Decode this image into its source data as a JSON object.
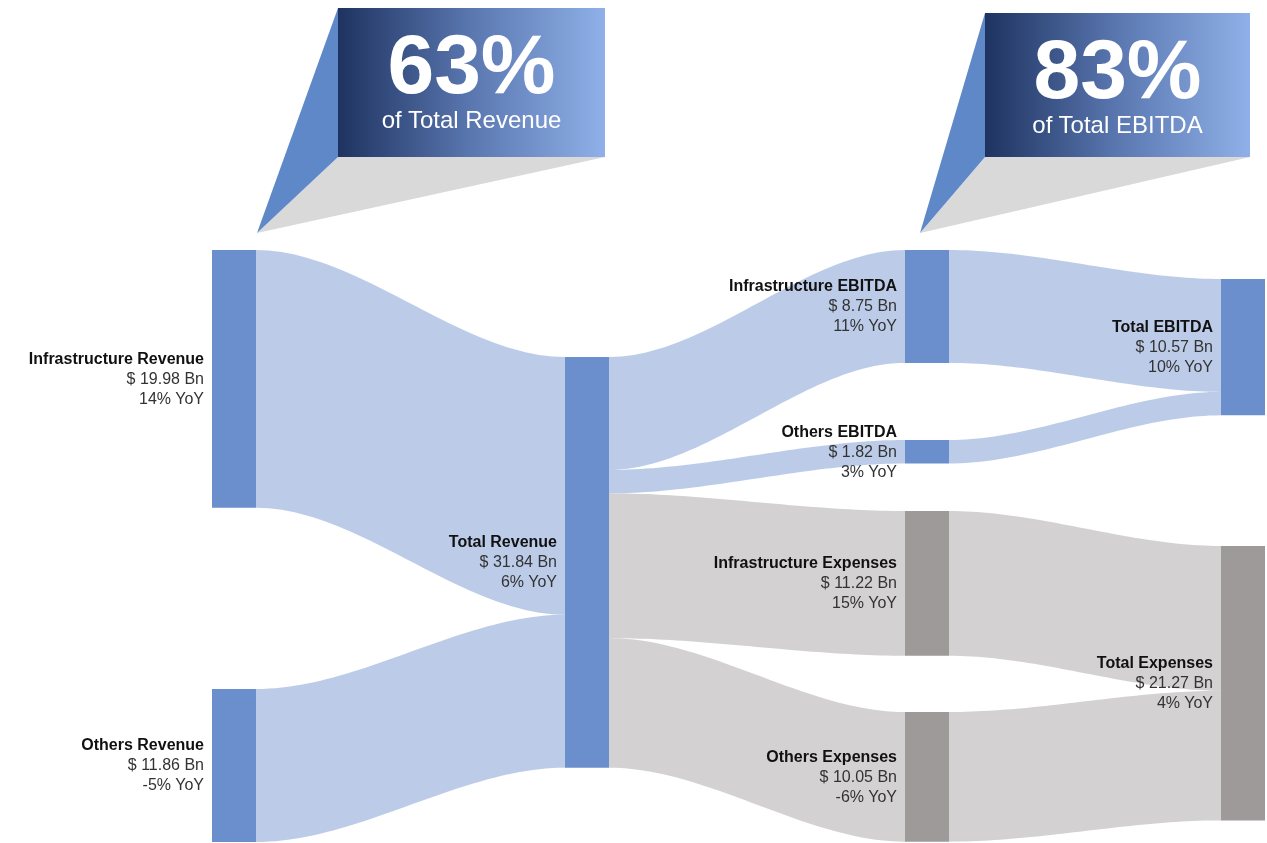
{
  "chart_data": {
    "type": "other",
    "categories": [
      "Infrastructure Revenue",
      "Others Revenue",
      "Total Revenue",
      "Infrastructure EBITDA",
      "Others EBITDA",
      "Infrastructure Expenses",
      "Others Expenses",
      "Total EBITDA",
      "Total Expenses"
    ],
    "values": [
      19.98,
      11.86,
      31.84,
      8.75,
      1.82,
      11.22,
      10.05,
      10.57,
      21.27
    ],
    "value_labels": [
      "$ 19.98 Bn",
      "$ 11.86 Bn",
      "$ 31.84 Bn",
      "$ 8.75 Bn",
      "$ 1.82 Bn",
      "$ 11.22 Bn",
      "$ 10.05 Bn",
      "$ 10.57 Bn",
      "$ 21.27 Bn"
    ],
    "colors": [
      "#6a8fcc",
      "#6a8fcc",
      "#6a8fcc",
      "#6a8fcc",
      "#6a8fcc",
      "#9e9a9a",
      "#9e9a9a",
      "#6a8fcc",
      "#9e9a9a"
    ],
    "annotations": [
      "14% YoY",
      "-5% YoY",
      "6% YoY",
      "11% YoY",
      "3% YoY",
      "15% YoY",
      "-6% YoY",
      "10% YoY",
      "4% YoY",
      "63%",
      "of Total Revenue",
      "83%",
      "of Total EBITDA"
    ]
  }
}
